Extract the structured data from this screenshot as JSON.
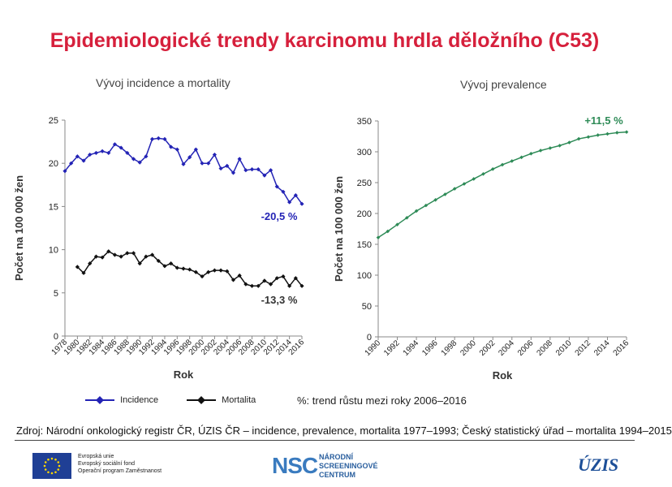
{
  "title": "Epidemiologické trendy karcinomu hrdla děložního (C53)",
  "chart_data": [
    {
      "type": "line",
      "title": "Vývoj incidence a mortality",
      "xlabel": "Rok",
      "ylabel": "Počet na 100 000 žen",
      "ylim": [
        0,
        25
      ],
      "yticks": [
        "0",
        "5",
        "10",
        "15",
        "20",
        "25"
      ],
      "xlim": [
        1978,
        2016
      ],
      "xticks": [
        "1978",
        "1980",
        "1982",
        "1984",
        "1986",
        "1988",
        "1990",
        "1992",
        "1994",
        "1996",
        "1998",
        "2000",
        "2002",
        "2004",
        "2006",
        "2008",
        "2010",
        "2012",
        "2014",
        "2016"
      ],
      "grid": false,
      "series": [
        {
          "name": "Incidence",
          "color": "#2323b5",
          "x": [
            1978,
            1979,
            1980,
            1981,
            1982,
            1983,
            1984,
            1985,
            1986,
            1987,
            1988,
            1989,
            1990,
            1991,
            1992,
            1993,
            1994,
            1995,
            1996,
            1997,
            1998,
            1999,
            2000,
            2001,
            2002,
            2003,
            2004,
            2005,
            2006,
            2007,
            2008,
            2009,
            2010,
            2011,
            2012,
            2013,
            2014,
            2015,
            2016
          ],
          "values": [
            19.1,
            20.0,
            20.8,
            20.3,
            21.0,
            21.2,
            21.4,
            21.2,
            22.2,
            21.8,
            21.2,
            20.5,
            20.1,
            20.8,
            22.8,
            22.9,
            22.8,
            21.9,
            21.6,
            19.9,
            20.7,
            21.6,
            20.0,
            20.0,
            21.0,
            19.4,
            19.7,
            18.9,
            20.5,
            19.2,
            19.3,
            19.3,
            18.6,
            19.2,
            17.3,
            16.7,
            15.5,
            16.3,
            15.3
          ]
        },
        {
          "name": "Mortalita",
          "color": "#111111",
          "x": [
            1980,
            1981,
            1982,
            1983,
            1984,
            1985,
            1986,
            1987,
            1988,
            1989,
            1990,
            1991,
            1992,
            1993,
            1994,
            1995,
            1996,
            1997,
            1998,
            1999,
            2000,
            2001,
            2002,
            2003,
            2004,
            2005,
            2006,
            2007,
            2008,
            2009,
            2010,
            2011,
            2012,
            2013,
            2014,
            2015,
            2016
          ],
          "values": [
            8.0,
            7.3,
            8.4,
            9.2,
            9.1,
            9.8,
            9.4,
            9.2,
            9.6,
            9.6,
            8.4,
            9.2,
            9.4,
            8.7,
            8.1,
            8.4,
            7.9,
            7.8,
            7.7,
            7.4,
            6.9,
            7.4,
            7.6,
            7.6,
            7.5,
            6.5,
            7.0,
            6.0,
            5.8,
            5.8,
            6.4,
            6.0,
            6.7,
            6.9,
            5.8,
            6.7,
            5.8
          ]
        }
      ],
      "annotations": [
        {
          "text": "-20,5 %",
          "color": "#2323b5"
        },
        {
          "text": "-13,3 %",
          "color": "#333333"
        }
      ]
    },
    {
      "type": "line",
      "title": "Vývoj prevalence",
      "xlabel": "Rok",
      "ylabel": "Počet na 100 000 žen",
      "ylim": [
        0,
        350
      ],
      "yticks": [
        "0",
        "50",
        "100",
        "150",
        "200",
        "250",
        "300",
        "350"
      ],
      "xlim": [
        1990,
        2016
      ],
      "xticks": [
        "1990",
        "1992",
        "1994",
        "1996",
        "1998",
        "2000",
        "2002",
        "2004",
        "2006",
        "2008",
        "2010",
        "2012",
        "2014",
        "2016"
      ],
      "grid": false,
      "series": [
        {
          "name": "Prevalence",
          "color": "#2e8b57",
          "x": [
            1990,
            1991,
            1992,
            1993,
            1994,
            1995,
            1996,
            1997,
            1998,
            1999,
            2000,
            2001,
            2002,
            2003,
            2004,
            2005,
            2006,
            2007,
            2008,
            2009,
            2010,
            2011,
            2012,
            2013,
            2014,
            2015,
            2016
          ],
          "values": [
            161,
            171,
            182,
            193,
            204,
            213,
            222,
            231,
            240,
            248,
            256,
            264,
            272,
            279,
            285,
            291,
            297,
            302,
            306,
            310,
            315,
            321,
            324,
            327,
            329,
            331,
            332
          ]
        }
      ],
      "annotations": [
        {
          "text": "+11,5 %",
          "color": "#2e8b57"
        }
      ]
    }
  ],
  "legend": {
    "incidence": "Incidence",
    "mortalita": "Mortalita"
  },
  "trend_note": "%: trend růstu mezi roky 2006–2016",
  "source": "Zdroj: Národní onkologický registr ČR, ÚZIS ČR – incidence, prevalence, mortalita 1977–1993; Český statistický úřad – mortalita 1994–2015",
  "footer": {
    "eu_lines": [
      "Evropská unie",
      "Evropský sociální fond",
      "Operační program Zaměstnanost"
    ],
    "nsc_logo": "NSC",
    "nsc_lines": [
      "NÁRODNÍ",
      "SCREENINGOVÉ",
      "CENTRUM"
    ],
    "uzis_logo": "ÚZIS"
  }
}
